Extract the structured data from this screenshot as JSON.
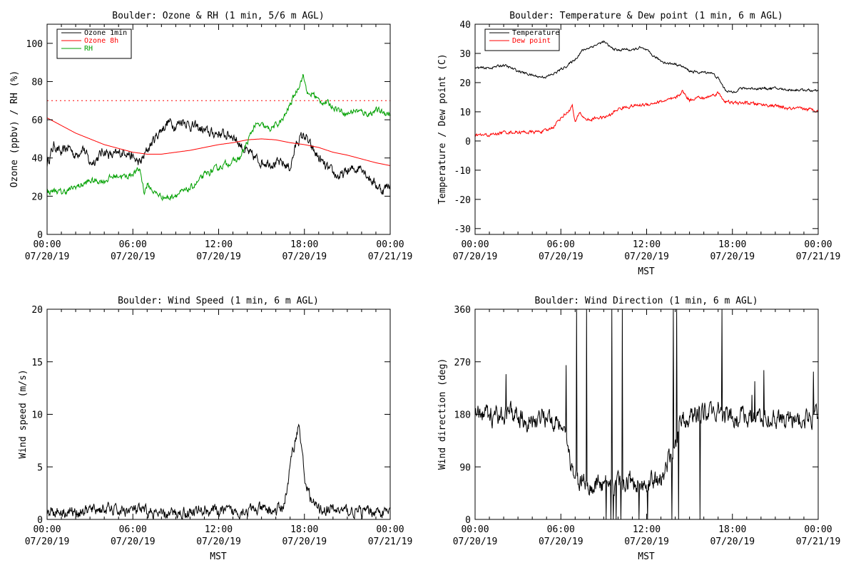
{
  "charts": {
    "ozone_rh": {
      "chart_data": {
        "type": "line",
        "title": "Boulder: Ozone & RH (1 min, 5/6 m AGL)",
        "xlabel": "",
        "ylabel": "Ozone (ppbv) / RH (%)",
        "x_ticks": [
          {
            "time": "00:00",
            "date": "07/20/19"
          },
          {
            "time": "06:00",
            "date": "07/20/19"
          },
          {
            "time": "12:00",
            "date": "07/20/19"
          },
          {
            "time": "18:00",
            "date": "07/20/19"
          },
          {
            "time": "00:00",
            "date": "07/21/19"
          }
        ],
        "xlim_hours": [
          0,
          24
        ],
        "ylim": [
          0,
          110
        ],
        "y_ticks": [
          0,
          20,
          40,
          60,
          80,
          100
        ],
        "reference_line": {
          "value": 70,
          "style": "dotted",
          "color": "#ff0000"
        },
        "legend": {
          "position": "top-left",
          "entries": [
            {
              "name": "Ozone 1min",
              "color": "#000000"
            },
            {
              "name": "Ozone 8h",
              "color": "#ff0000"
            },
            {
              "name": "RH",
              "color": "#00a000"
            }
          ]
        },
        "series": [
          {
            "name": "Ozone 1min",
            "color": "#000000",
            "x_hours": [
              0,
              0.5,
              1,
              1.5,
              2,
              2.5,
              3,
              3.5,
              4,
              4.5,
              5,
              5.5,
              6,
              6.5,
              7,
              7.5,
              8,
              8.5,
              9,
              9.5,
              10,
              10.5,
              11,
              11.5,
              12,
              12.5,
              13,
              13.5,
              14,
              14.5,
              15,
              15.5,
              16,
              16.5,
              17,
              17.5,
              18,
              18.5,
              19,
              19.5,
              20,
              20.5,
              21,
              21.5,
              22,
              22.5,
              23,
              23.5,
              24
            ],
            "values": [
              37,
              47,
              42,
              46,
              41,
              46,
              37,
              40,
              44,
              41,
              42,
              44,
              40,
              37,
              44,
              50,
              55,
              59,
              57,
              60,
              57,
              56,
              54,
              53,
              53,
              52,
              52,
              47,
              43,
              40,
              38,
              38,
              37,
              37,
              35,
              49,
              52,
              45,
              40,
              35,
              32,
              30,
              33,
              34,
              36,
              30,
              26,
              23,
              27
            ],
            "noise": 2.2
          },
          {
            "name": "Ozone 8h",
            "color": "#ff0000",
            "x_hours": [
              0,
              1,
              2,
              3,
              4,
              5,
              6,
              7,
              8,
              9,
              10,
              11,
              12,
              13,
              14,
              15,
              16,
              17,
              18,
              19,
              20,
              21,
              22,
              23,
              24
            ],
            "values": [
              61,
              57,
              53,
              50,
              47,
              45,
              43,
              42,
              42,
              43,
              44,
              45.5,
              47,
              48,
              49.5,
              50,
              49.5,
              48,
              47,
              45.5,
              43,
              41.5,
              39.5,
              37.5,
              36
            ],
            "noise": 0
          },
          {
            "name": "RH",
            "color": "#00a000",
            "x_hours": [
              0,
              0.5,
              1,
              1.5,
              2,
              2.5,
              3,
              3.5,
              4,
              4.5,
              5,
              5.5,
              6,
              6.5,
              6.8,
              7,
              7.5,
              8,
              8.5,
              9,
              9.5,
              10,
              10.5,
              11,
              11.5,
              12,
              12.5,
              13,
              13.5,
              14,
              14.5,
              15,
              15.5,
              16,
              16.5,
              17,
              17.5,
              17.9,
              18.3,
              18.6,
              19,
              19.5,
              20,
              20.5,
              21,
              21.5,
              22,
              22.5,
              23,
              23.5,
              24
            ],
            "values": [
              22,
              23,
              22,
              23,
              25,
              26,
              28,
              28,
              28,
              30,
              31,
              30,
              32,
              34,
              22,
              26,
              22,
              20,
              19,
              21,
              22,
              24,
              27,
              31,
              33,
              35,
              37,
              38,
              40,
              48,
              57,
              57,
              55,
              57,
              60,
              68,
              76,
              83,
              72,
              74,
              70,
              69,
              67,
              65,
              63,
              65,
              64,
              63,
              65,
              64,
              63
            ],
            "noise": 1.3
          }
        ]
      }
    },
    "temp_dew": {
      "chart_data": {
        "type": "line",
        "title": "Boulder: Temperature & Dew point (1 min, 6 m AGL)",
        "xlabel": "MST",
        "ylabel": "Temperature / Dew point (C)",
        "x_ticks": [
          {
            "time": "00:00",
            "date": "07/20/19"
          },
          {
            "time": "06:00",
            "date": "07/20/19"
          },
          {
            "time": "12:00",
            "date": "07/20/19"
          },
          {
            "time": "18:00",
            "date": "07/20/19"
          },
          {
            "time": "00:00",
            "date": "07/21/19"
          }
        ],
        "xlim_hours": [
          0,
          24
        ],
        "ylim": [
          -32,
          40
        ],
        "y_ticks": [
          -30,
          -20,
          -10,
          0,
          10,
          20,
          30,
          40
        ],
        "legend": {
          "position": "top-left",
          "entries": [
            {
              "name": "Temperature",
              "color": "#000000"
            },
            {
              "name": "Dew point",
              "color": "#ff0000"
            }
          ]
        },
        "series": [
          {
            "name": "Temperature",
            "color": "#000000",
            "x_hours": [
              0,
              1,
              2,
              3,
              4,
              4.5,
              5,
              5.5,
              6,
              6.5,
              7,
              7.5,
              8,
              8.5,
              9,
              9.5,
              10,
              10.5,
              11,
              11.5,
              12,
              12.5,
              13,
              13.5,
              14,
              14.5,
              15,
              15.5,
              16,
              16.5,
              17,
              17.5,
              18,
              18.5,
              19,
              20,
              21,
              22,
              23,
              24
            ],
            "values": [
              25,
              25,
              26,
              24,
              22.5,
              22,
              22,
              23,
              24.5,
              26,
              28,
              31,
              32,
              33,
              34,
              32,
              31,
              31.5,
              31,
              32,
              31,
              29,
              27.5,
              26.5,
              26.5,
              25.5,
              24,
              23.5,
              23.5,
              23.5,
              21.5,
              17.5,
              16.5,
              18,
              18,
              18,
              18,
              17.5,
              17.5,
              17
            ],
            "noise": 0.35
          },
          {
            "name": "Dew point",
            "color": "#ff0000",
            "x_hours": [
              0,
              1,
              2,
              3,
              4,
              5,
              5.5,
              6,
              6.5,
              6.8,
              7,
              7.3,
              7.6,
              8,
              8.5,
              9,
              9.5,
              10,
              11,
              12,
              12.5,
              13,
              13.5,
              14,
              14.5,
              15,
              15.5,
              16,
              16.5,
              17,
              17.5,
              18,
              19,
              20,
              21,
              22,
              23,
              24
            ],
            "values": [
              2,
              2,
              3,
              3,
              3,
              3.5,
              5,
              8,
              10,
              12,
              6,
              10,
              8,
              7,
              8,
              8,
              9,
              11,
              12,
              12.5,
              13,
              13.5,
              14,
              14.5,
              17,
              14,
              15,
              14.5,
              15.5,
              16.5,
              13.5,
              13,
              13,
              12.5,
              12,
              11,
              11,
              10.5
            ],
            "noise": 0.45
          }
        ]
      }
    },
    "wind_speed": {
      "chart_data": {
        "type": "line",
        "title": "Boulder: Wind Speed (1 min, 6 m AGL)",
        "xlabel": "MST",
        "ylabel": "Wind speed (m/s)",
        "x_ticks": [
          {
            "time": "00:00",
            "date": "07/20/19"
          },
          {
            "time": "06:00",
            "date": "07/20/19"
          },
          {
            "time": "12:00",
            "date": "07/20/19"
          },
          {
            "time": "18:00",
            "date": "07/20/19"
          },
          {
            "time": "00:00",
            "date": "07/21/19"
          }
        ],
        "xlim_hours": [
          0,
          24
        ],
        "ylim": [
          0,
          20
        ],
        "y_ticks": [
          0,
          5,
          10,
          15,
          20
        ],
        "series": [
          {
            "name": "",
            "color": "#000000",
            "x_hours": [
              0,
              1,
              2,
              3,
              4,
              5,
              6,
              7,
              8,
              9,
              10,
              11,
              12,
              13,
              14,
              15,
              16,
              16.5,
              16.8,
              17,
              17.2,
              17.4,
              17.6,
              17.8,
              18,
              18.3,
              18.6,
              19,
              20,
              21,
              22,
              23,
              24
            ],
            "values": [
              0.8,
              0.8,
              0.7,
              0.9,
              1.0,
              0.8,
              0.9,
              0.7,
              0.4,
              0.6,
              0.7,
              0.9,
              0.8,
              0.7,
              0.9,
              0.9,
              0.8,
              1.2,
              3.0,
              5.0,
              6.5,
              8.0,
              9.0,
              7.0,
              4.0,
              2.5,
              1.5,
              1.0,
              0.9,
              0.8,
              0.7,
              0.8,
              0.6
            ],
            "noise": 0.45
          }
        ]
      }
    },
    "wind_dir": {
      "chart_data": {
        "type": "line",
        "title": "Boulder: Wind Direction (1 min, 6 m AGL)",
        "xlabel": "MST",
        "ylabel": "Wind direction (deg)",
        "x_ticks": [
          {
            "time": "00:00",
            "date": "07/20/19"
          },
          {
            "time": "06:00",
            "date": "07/20/19"
          },
          {
            "time": "12:00",
            "date": "07/20/19"
          },
          {
            "time": "18:00",
            "date": "07/20/19"
          },
          {
            "time": "00:00",
            "date": "07/21/19"
          }
        ],
        "xlim_hours": [
          0,
          24
        ],
        "ylim": [
          0,
          360
        ],
        "y_ticks": [
          0,
          90,
          180,
          270,
          360
        ],
        "series": [
          {
            "name": "",
            "color": "#000000",
            "x_hours": [
              0,
              1,
              2,
              3,
              4,
              5,
              6,
              6.5,
              7,
              7.5,
              8,
              9,
              10,
              11,
              12,
              13,
              14,
              14.5,
              15,
              15.5,
              16,
              16.5,
              17,
              17.5,
              18,
              19,
              20,
              21,
              22,
              23,
              24
            ],
            "values": [
              180,
              178,
              175,
              180,
              168,
              175,
              170,
              120,
              60,
              70,
              60,
              60,
              60,
              65,
              60,
              70,
              130,
              170,
              175,
              180,
              185,
              185,
              185,
              170,
              175,
              175,
              175,
              170,
              170,
              175,
              175
            ],
            "noise": 14
          }
        ]
      }
    }
  }
}
